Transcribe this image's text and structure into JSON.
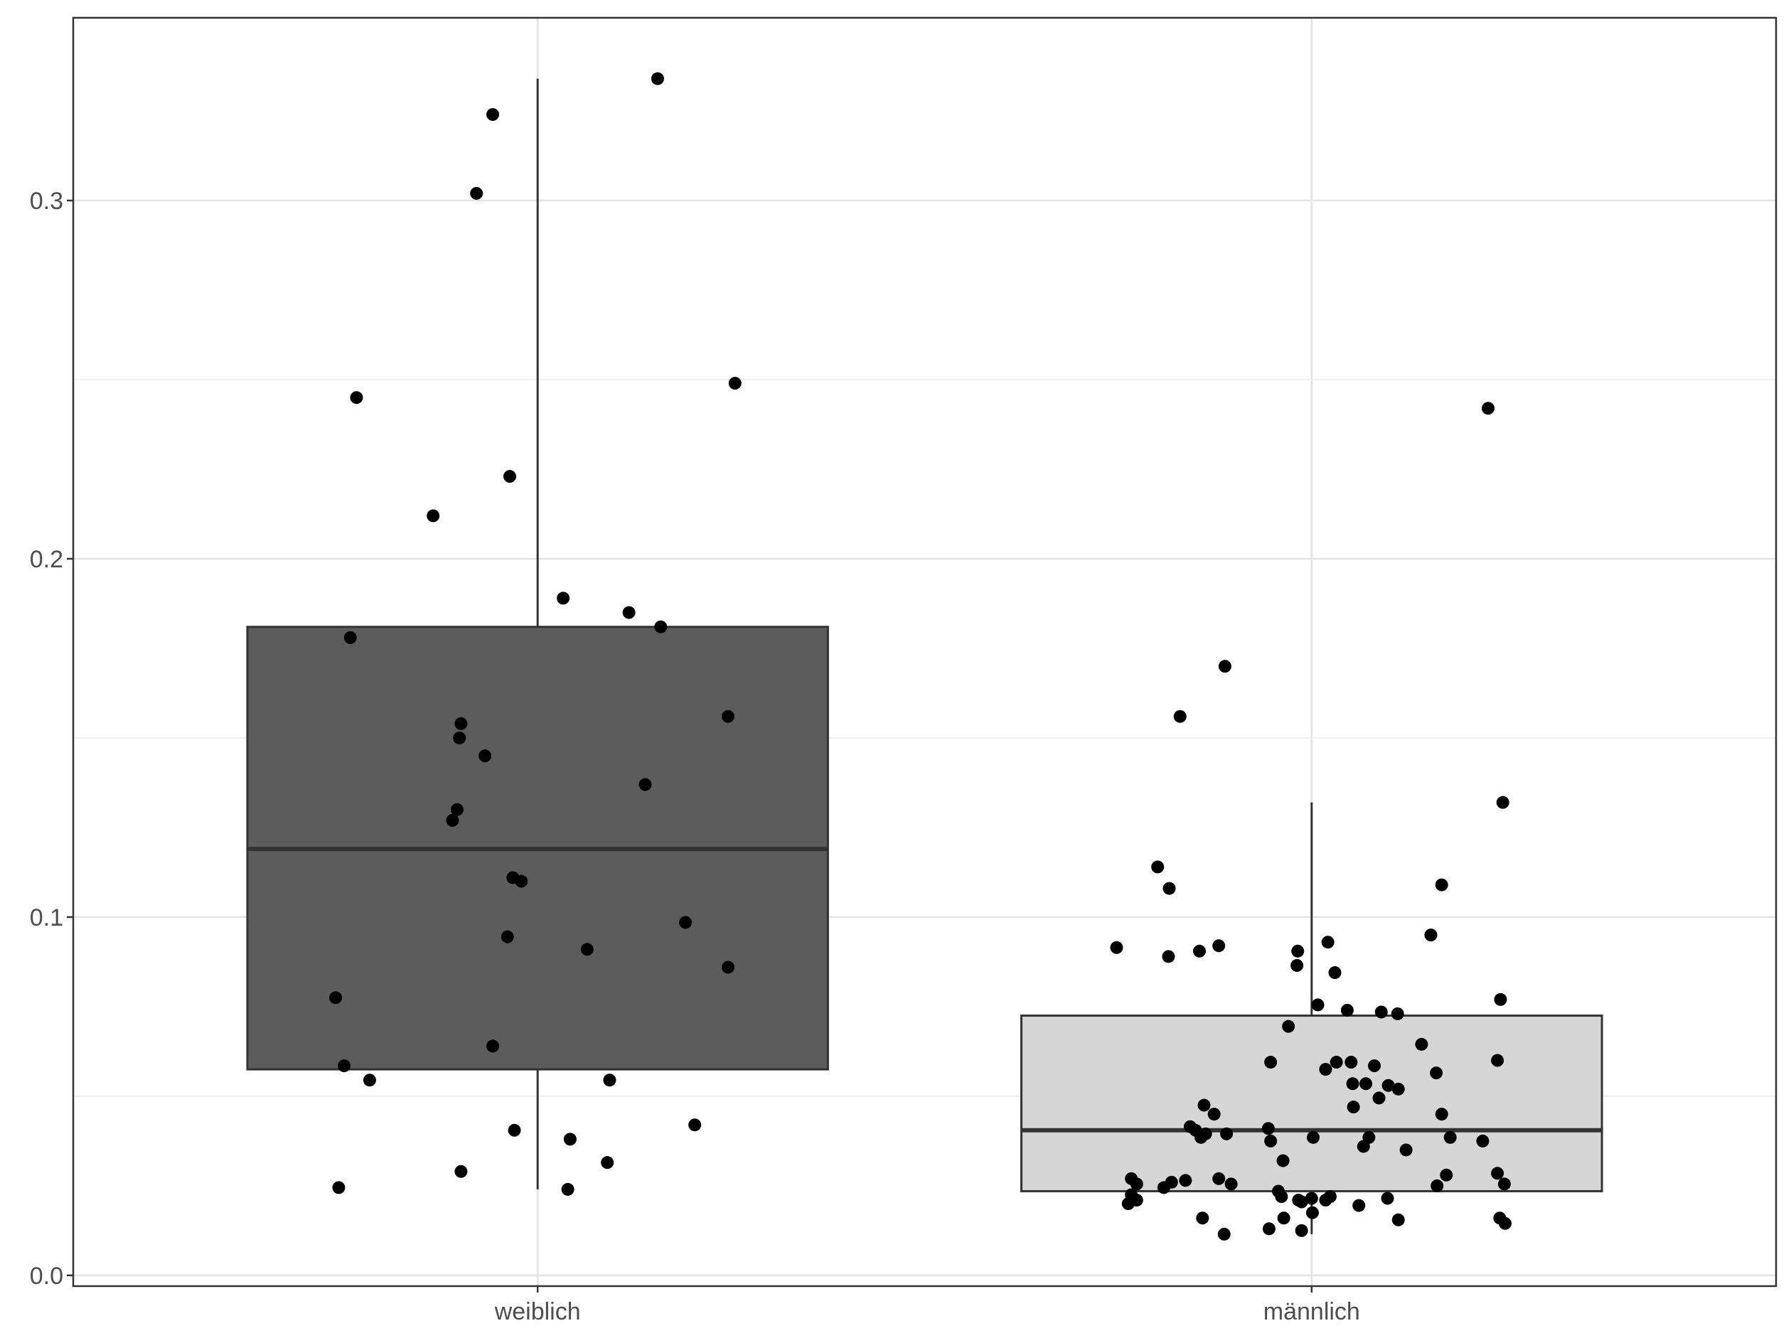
{
  "chart_data": {
    "type": "boxplot",
    "title": "",
    "xlabel": "",
    "ylabel": "",
    "ylim": [
      -0.003,
      0.351
    ],
    "y_ticks": [
      {
        "value": 0.0,
        "label": "0.0"
      },
      {
        "value": 0.1,
        "label": "0.1"
      },
      {
        "value": 0.2,
        "label": "0.2"
      },
      {
        "value": 0.3,
        "label": "0.3"
      }
    ],
    "y_minor_ticks": [
      0.05,
      0.15,
      0.25
    ],
    "grid": true,
    "categories": [
      "weiblich",
      "männlich"
    ],
    "boxes": [
      {
        "category": "weiblich",
        "fill": "#5c5c5c",
        "q1": 0.0575,
        "median": 0.119,
        "q3": 0.181,
        "whisker_low": 0.024,
        "whisker_high": 0.334
      },
      {
        "category": "männlich",
        "fill": "#d6d6d6",
        "q1": 0.0235,
        "median": 0.0405,
        "q3": 0.0725,
        "whisker_low": 0.0115,
        "whisker_high": 0.132
      }
    ],
    "points": [
      {
        "category": "weiblich",
        "jitter": 0.155,
        "y": 0.334
      },
      {
        "category": "weiblich",
        "jitter": -0.058,
        "y": 0.324
      },
      {
        "category": "weiblich",
        "jitter": -0.079,
        "y": 0.302
      },
      {
        "category": "weiblich",
        "jitter": 0.255,
        "y": 0.249
      },
      {
        "category": "weiblich",
        "jitter": -0.234,
        "y": 0.245
      },
      {
        "category": "weiblich",
        "jitter": -0.036,
        "y": 0.223
      },
      {
        "category": "weiblich",
        "jitter": -0.135,
        "y": 0.212
      },
      {
        "category": "weiblich",
        "jitter": 0.033,
        "y": 0.189
      },
      {
        "category": "weiblich",
        "jitter": 0.118,
        "y": 0.185
      },
      {
        "category": "weiblich",
        "jitter": 0.159,
        "y": 0.181
      },
      {
        "category": "weiblich",
        "jitter": -0.242,
        "y": 0.178
      },
      {
        "category": "weiblich",
        "jitter": 0.246,
        "y": 0.156
      },
      {
        "category": "weiblich",
        "jitter": -0.099,
        "y": 0.154
      },
      {
        "category": "weiblich",
        "jitter": -0.101,
        "y": 0.15
      },
      {
        "category": "weiblich",
        "jitter": -0.068,
        "y": 0.145
      },
      {
        "category": "weiblich",
        "jitter": 0.139,
        "y": 0.137
      },
      {
        "category": "weiblich",
        "jitter": -0.104,
        "y": 0.13
      },
      {
        "category": "weiblich",
        "jitter": -0.11,
        "y": 0.127
      },
      {
        "category": "weiblich",
        "jitter": -0.032,
        "y": 0.111
      },
      {
        "category": "weiblich",
        "jitter": -0.021,
        "y": 0.11
      },
      {
        "category": "weiblich",
        "jitter": 0.191,
        "y": 0.0985
      },
      {
        "category": "weiblich",
        "jitter": -0.039,
        "y": 0.0945
      },
      {
        "category": "weiblich",
        "jitter": 0.064,
        "y": 0.091
      },
      {
        "category": "weiblich",
        "jitter": 0.246,
        "y": 0.086
      },
      {
        "category": "weiblich",
        "jitter": -0.261,
        "y": 0.0775
      },
      {
        "category": "weiblich",
        "jitter": -0.058,
        "y": 0.064
      },
      {
        "category": "weiblich",
        "jitter": -0.25,
        "y": 0.0585
      },
      {
        "category": "weiblich",
        "jitter": -0.217,
        "y": 0.0545
      },
      {
        "category": "weiblich",
        "jitter": 0.093,
        "y": 0.0545
      },
      {
        "category": "weiblich",
        "jitter": 0.203,
        "y": 0.042
      },
      {
        "category": "weiblich",
        "jitter": -0.03,
        "y": 0.0405
      },
      {
        "category": "weiblich",
        "jitter": 0.042,
        "y": 0.038
      },
      {
        "category": "weiblich",
        "jitter": 0.09,
        "y": 0.0315
      },
      {
        "category": "weiblich",
        "jitter": -0.099,
        "y": 0.029
      },
      {
        "category": "weiblich",
        "jitter": -0.257,
        "y": 0.0245
      },
      {
        "category": "weiblich",
        "jitter": 0.039,
        "y": 0.024
      },
      {
        "category": "männlich",
        "jitter": 0.228,
        "y": 0.242
      },
      {
        "category": "männlich",
        "jitter": -0.112,
        "y": 0.17
      },
      {
        "category": "männlich",
        "jitter": -0.17,
        "y": 0.156
      },
      {
        "category": "männlich",
        "jitter": 0.247,
        "y": 0.132
      },
      {
        "category": "männlich",
        "jitter": -0.199,
        "y": 0.114
      },
      {
        "category": "männlich",
        "jitter": -0.184,
        "y": 0.108
      },
      {
        "category": "männlich",
        "jitter": 0.168,
        "y": 0.109
      },
      {
        "category": "männlich",
        "jitter": 0.154,
        "y": 0.095
      },
      {
        "category": "männlich",
        "jitter": -0.252,
        "y": 0.0915
      },
      {
        "category": "männlich",
        "jitter": 0.021,
        "y": 0.093
      },
      {
        "category": "männlich",
        "jitter": -0.12,
        "y": 0.092
      },
      {
        "category": "männlich",
        "jitter": -0.145,
        "y": 0.0905
      },
      {
        "category": "männlich",
        "jitter": -0.185,
        "y": 0.089
      },
      {
        "category": "männlich",
        "jitter": -0.018,
        "y": 0.0905
      },
      {
        "category": "männlich",
        "jitter": -0.019,
        "y": 0.0865
      },
      {
        "category": "männlich",
        "jitter": 0.03,
        "y": 0.0845
      },
      {
        "category": "männlich",
        "jitter": 0.244,
        "y": 0.077
      },
      {
        "category": "männlich",
        "jitter": 0.008,
        "y": 0.0755
      },
      {
        "category": "männlich",
        "jitter": 0.046,
        "y": 0.074
      },
      {
        "category": "männlich",
        "jitter": 0.09,
        "y": 0.0735
      },
      {
        "category": "männlich",
        "jitter": 0.111,
        "y": 0.073
      },
      {
        "category": "männlich",
        "jitter": -0.03,
        "y": 0.0695
      },
      {
        "category": "männlich",
        "jitter": 0.142,
        "y": 0.0645
      },
      {
        "category": "männlich",
        "jitter": -0.053,
        "y": 0.0595
      },
      {
        "category": "männlich",
        "jitter": 0.032,
        "y": 0.0595
      },
      {
        "category": "männlich",
        "jitter": 0.051,
        "y": 0.0595
      },
      {
        "category": "männlich",
        "jitter": 0.081,
        "y": 0.0585
      },
      {
        "category": "männlich",
        "jitter": 0.018,
        "y": 0.0575
      },
      {
        "category": "männlich",
        "jitter": 0.24,
        "y": 0.06
      },
      {
        "category": "männlich",
        "jitter": 0.161,
        "y": 0.0565
      },
      {
        "category": "männlich",
        "jitter": 0.053,
        "y": 0.0535
      },
      {
        "category": "männlich",
        "jitter": 0.07,
        "y": 0.0535
      },
      {
        "category": "männlich",
        "jitter": 0.099,
        "y": 0.053
      },
      {
        "category": "männlich",
        "jitter": 0.112,
        "y": 0.052
      },
      {
        "category": "männlich",
        "jitter": 0.087,
        "y": 0.0495
      },
      {
        "category": "männlich",
        "jitter": -0.139,
        "y": 0.0475
      },
      {
        "category": "männlich",
        "jitter": 0.054,
        "y": 0.047
      },
      {
        "category": "männlich",
        "jitter": -0.126,
        "y": 0.045
      },
      {
        "category": "männlich",
        "jitter": 0.168,
        "y": 0.045
      },
      {
        "category": "männlich",
        "jitter": -0.157,
        "y": 0.0415
      },
      {
        "category": "männlich",
        "jitter": -0.15,
        "y": 0.0405
      },
      {
        "category": "männlich",
        "jitter": -0.056,
        "y": 0.041
      },
      {
        "category": "männlich",
        "jitter": -0.11,
        "y": 0.0395
      },
      {
        "category": "männlich",
        "jitter": -0.137,
        "y": 0.0395
      },
      {
        "category": "männlich",
        "jitter": -0.143,
        "y": 0.0385
      },
      {
        "category": "männlich",
        "jitter": 0.002,
        "y": 0.0385
      },
      {
        "category": "männlich",
        "jitter": 0.074,
        "y": 0.0385
      },
      {
        "category": "männlich",
        "jitter": 0.179,
        "y": 0.0385
      },
      {
        "category": "männlich",
        "jitter": -0.053,
        "y": 0.0375
      },
      {
        "category": "männlich",
        "jitter": 0.221,
        "y": 0.0375
      },
      {
        "category": "männlich",
        "jitter": 0.067,
        "y": 0.036
      },
      {
        "category": "männlich",
        "jitter": 0.122,
        "y": 0.035
      },
      {
        "category": "männlich",
        "jitter": -0.037,
        "y": 0.032
      },
      {
        "category": "männlich",
        "jitter": 0.24,
        "y": 0.0285
      },
      {
        "category": "männlich",
        "jitter": 0.174,
        "y": 0.028
      },
      {
        "category": "männlich",
        "jitter": -0.163,
        "y": 0.0265
      },
      {
        "category": "männlich",
        "jitter": -0.233,
        "y": 0.027
      },
      {
        "category": "männlich",
        "jitter": -0.12,
        "y": 0.027
      },
      {
        "category": "männlich",
        "jitter": -0.181,
        "y": 0.026
      },
      {
        "category": "männlich",
        "jitter": -0.226,
        "y": 0.0255
      },
      {
        "category": "männlich",
        "jitter": -0.104,
        "y": 0.0255
      },
      {
        "category": "männlich",
        "jitter": 0.249,
        "y": 0.0255
      },
      {
        "category": "männlich",
        "jitter": -0.191,
        "y": 0.0245
      },
      {
        "category": "männlich",
        "jitter": -0.043,
        "y": 0.0235
      },
      {
        "category": "männlich",
        "jitter": -0.233,
        "y": 0.0225
      },
      {
        "category": "männlich",
        "jitter": -0.226,
        "y": 0.021
      },
      {
        "category": "männlich",
        "jitter": -0.237,
        "y": 0.02
      },
      {
        "category": "männlich",
        "jitter": -0.039,
        "y": 0.022
      },
      {
        "category": "männlich",
        "jitter": -0.017,
        "y": 0.021
      },
      {
        "category": "männlich",
        "jitter": -0.013,
        "y": 0.0205
      },
      {
        "category": "männlich",
        "jitter": 0.0,
        "y": 0.0215
      },
      {
        "category": "männlich",
        "jitter": 0.018,
        "y": 0.021
      },
      {
        "category": "männlich",
        "jitter": 0.024,
        "y": 0.022
      },
      {
        "category": "männlich",
        "jitter": 0.061,
        "y": 0.0195
      },
      {
        "category": "männlich",
        "jitter": 0.098,
        "y": 0.0215
      },
      {
        "category": "männlich",
        "jitter": 0.162,
        "y": 0.025
      },
      {
        "category": "männlich",
        "jitter": 0.001,
        "y": 0.0175
      },
      {
        "category": "männlich",
        "jitter": -0.036,
        "y": 0.016
      },
      {
        "category": "männlich",
        "jitter": -0.141,
        "y": 0.016
      },
      {
        "category": "männlich",
        "jitter": 0.112,
        "y": 0.0155
      },
      {
        "category": "männlich",
        "jitter": 0.243,
        "y": 0.016
      },
      {
        "category": "männlich",
        "jitter": 0.25,
        "y": 0.0145
      },
      {
        "category": "männlich",
        "jitter": -0.055,
        "y": 0.013
      },
      {
        "category": "männlich",
        "jitter": -0.013,
        "y": 0.0125
      },
      {
        "category": "männlich",
        "jitter": -0.113,
        "y": 0.0115
      }
    ]
  }
}
